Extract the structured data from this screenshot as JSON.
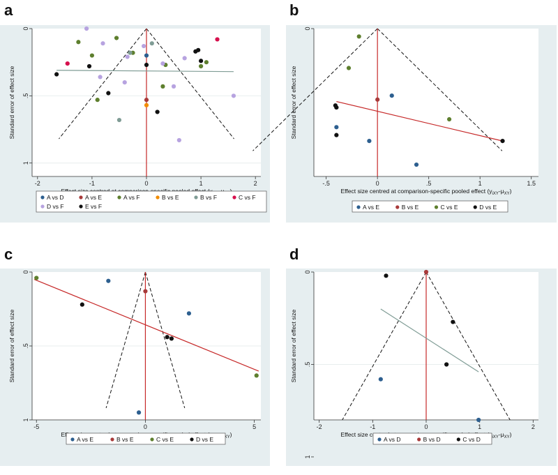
{
  "colors": {
    "panel_bg": "#e6eef0",
    "plot_bg": "#ffffff",
    "vline": "#c62828",
    "A": "#2d5f8f",
    "B": "#a83a3a",
    "C": "#5e7f2e",
    "D": "#b7a3e0",
    "E": "#111111",
    "Borange": "#f28c00",
    "Bgray": "#7f9c95",
    "Cpink": "#d6104d"
  },
  "chart_data": [
    {
      "panel": "a",
      "type": "scatter",
      "xlabel": "Effect size centred at comparison-specific pooled effect (y",
      "xlabel_sub": "iXY",
      "xlabel_mid": "-μ",
      "xlabel_sub2": "XY",
      "xlabel_end": ")",
      "ylabel": "Standard error of effect size",
      "xlim": [
        -2.1,
        2.1
      ],
      "ylim": [
        0,
        1.1
      ],
      "x_ticks": [
        -2,
        -1,
        0,
        1,
        2
      ],
      "x_tick_labels": [
        "-2",
        "-1",
        "0",
        "1",
        "2"
      ],
      "y_ticks": [
        0,
        0.5,
        1
      ],
      "y_tick_labels": [
        "0",
        ".5",
        "1"
      ],
      "funnel_max_se": 0.82,
      "fit_line": {
        "x": [
          -1.65,
          1.6
        ],
        "y": [
          0.31,
          0.32
        ],
        "color": "#7f9c95"
      },
      "legend": [
        {
          "label": "A vs D",
          "color": "#2d5f8f"
        },
        {
          "label": "A vs E",
          "color": "#a83a3a"
        },
        {
          "label": "A vs F",
          "color": "#5e7f2e"
        },
        {
          "label": "B vs E",
          "color": "#f28c00"
        },
        {
          "label": "B vs F",
          "color": "#7f9c95"
        },
        {
          "label": "C vs F",
          "color": "#d6104d"
        },
        {
          "label": "D vs F",
          "color": "#b7a3e0"
        },
        {
          "label": "E vs F",
          "color": "#111111"
        }
      ],
      "series": [
        {
          "name": "A vs D",
          "color": "#2d5f8f",
          "points": [
            [
              0.0,
              0.2
            ]
          ]
        },
        {
          "name": "A vs E",
          "color": "#a83a3a",
          "points": [
            [
              0.0,
              0.53
            ]
          ]
        },
        {
          "name": "A vs F",
          "color": "#5e7f2e",
          "points": [
            [
              -1.25,
              0.1
            ],
            [
              -0.55,
              0.07
            ],
            [
              -1.0,
              0.2
            ],
            [
              -0.25,
              0.18
            ],
            [
              0.35,
              0.27
            ],
            [
              1.0,
              0.28
            ],
            [
              1.1,
              0.25
            ],
            [
              0.3,
              0.43
            ],
            [
              -0.9,
              0.53
            ]
          ]
        },
        {
          "name": "B vs E",
          "color": "#f28c00",
          "points": [
            [
              0.0,
              0.57
            ]
          ]
        },
        {
          "name": "B vs F",
          "color": "#7f9c95",
          "points": [
            [
              -0.3,
              0.18
            ],
            [
              0.1,
              0.11
            ],
            [
              -0.5,
              0.68
            ]
          ]
        },
        {
          "name": "C vs F",
          "color": "#d6104d",
          "points": [
            [
              -1.45,
              0.26
            ],
            [
              1.3,
              0.08
            ]
          ]
        },
        {
          "name": "D vs F",
          "color": "#b7a3e0",
          "points": [
            [
              -1.1,
              0.0
            ],
            [
              -0.8,
              0.11
            ],
            [
              -0.35,
              0.21
            ],
            [
              -0.05,
              0.13
            ],
            [
              0.3,
              0.26
            ],
            [
              0.7,
              0.22
            ],
            [
              -0.85,
              0.36
            ],
            [
              -0.4,
              0.4
            ],
            [
              0.5,
              0.43
            ],
            [
              1.6,
              0.5
            ],
            [
              0.6,
              0.83
            ]
          ]
        },
        {
          "name": "E vs F",
          "color": "#111111",
          "points": [
            [
              -1.65,
              0.34
            ],
            [
              -1.05,
              0.28
            ],
            [
              -0.7,
              0.48
            ],
            [
              0.0,
              0.27
            ],
            [
              0.2,
              0.62
            ],
            [
              0.9,
              0.17
            ],
            [
              1.0,
              0.24
            ],
            [
              0.95,
              0.16
            ]
          ]
        }
      ]
    },
    {
      "panel": "b",
      "type": "scatter",
      "xlabel": "Effect size centred at comparison-specific pooled effect (y",
      "xlabel_sub": "iXY",
      "xlabel_mid": "-μ",
      "xlabel_sub2": "XY",
      "xlabel_end": ")",
      "ylabel": "Standard error of effect size",
      "xlim": [
        -0.62,
        1.57
      ],
      "ylim": [
        0,
        0.75
      ],
      "x_ticks": [
        -0.5,
        0,
        0.5,
        1,
        1.5
      ],
      "x_tick_labels": [
        "-.5",
        "0",
        ".5",
        "1",
        "1.5"
      ],
      "y_ticks": [
        0
      ],
      "y_tick_labels": [
        "0"
      ],
      "funnel_max_se": 0.62,
      "fit_line": {
        "x": [
          -0.4,
          1.22
        ],
        "y": [
          0.37,
          0.57
        ],
        "color": "#c62828"
      },
      "legend": [
        {
          "label": "A vs E",
          "color": "#2d5f8f"
        },
        {
          "label": "B vs E",
          "color": "#a83a3a"
        },
        {
          "label": "C vs E",
          "color": "#5e7f2e"
        },
        {
          "label": "D vs E",
          "color": "#111111"
        }
      ],
      "series": [
        {
          "name": "A vs E",
          "color": "#2d5f8f",
          "points": [
            [
              0.14,
              0.34
            ],
            [
              -0.4,
              0.5
            ],
            [
              -0.08,
              0.57
            ],
            [
              0.38,
              0.69
            ]
          ]
        },
        {
          "name": "B vs E",
          "color": "#a83a3a",
          "points": [
            [
              0.0,
              0.36
            ]
          ]
        },
        {
          "name": "C vs E",
          "color": "#5e7f2e",
          "points": [
            [
              -0.18,
              0.04
            ],
            [
              -0.28,
              0.2
            ],
            [
              0.7,
              0.46
            ]
          ]
        },
        {
          "name": "D vs E",
          "color": "#111111",
          "points": [
            [
              -0.4,
              0.4
            ],
            [
              -0.41,
              0.39
            ],
            [
              -0.4,
              0.54
            ],
            [
              1.22,
              0.57
            ]
          ]
        }
      ]
    },
    {
      "panel": "c",
      "type": "scatter",
      "xlabel": "Effect size centred at comparison-specific pooled effect (y",
      "xlabel_sub": "iXY",
      "xlabel_mid": "-μ",
      "xlabel_sub2": "XY",
      "xlabel_end": ")",
      "ylabel": "Standard error of effect size",
      "xlim": [
        -5.2,
        5.3
      ],
      "ylim": [
        0,
        1.0
      ],
      "x_ticks": [
        -5,
        0,
        5
      ],
      "x_tick_labels": [
        "-5",
        "0",
        "5"
      ],
      "y_ticks": [
        0,
        0.5,
        1
      ],
      "y_tick_labels": [
        "0",
        ".5",
        "1"
      ],
      "funnel_max_se": 0.92,
      "fit_line": {
        "x": [
          -5.1,
          5.2
        ],
        "y": [
          0.05,
          0.67
        ],
        "color": "#c62828"
      },
      "legend": [
        {
          "label": "A vs E",
          "color": "#2d5f8f"
        },
        {
          "label": "B vs E",
          "color": "#a83a3a"
        },
        {
          "label": "C vs E",
          "color": "#5e7f2e"
        },
        {
          "label": "D vs E",
          "color": "#111111"
        }
      ],
      "series": [
        {
          "name": "A vs E",
          "color": "#2d5f8f",
          "points": [
            [
              -1.7,
              0.06
            ],
            [
              2.0,
              0.28
            ],
            [
              -0.3,
              0.95
            ]
          ]
        },
        {
          "name": "B vs E",
          "color": "#a83a3a",
          "points": [
            [
              0.0,
              0.13
            ]
          ]
        },
        {
          "name": "C vs E",
          "color": "#5e7f2e",
          "points": [
            [
              -5.0,
              0.04
            ],
            [
              5.1,
              0.7
            ]
          ]
        },
        {
          "name": "D vs E",
          "color": "#111111",
          "points": [
            [
              -2.9,
              0.22
            ],
            [
              1.0,
              0.44
            ],
            [
              1.2,
              0.45
            ]
          ]
        }
      ]
    },
    {
      "panel": "d",
      "type": "scatter",
      "xlabel": "Effect size centred at comparison-specific pooled effect (y",
      "xlabel_sub": "iXY",
      "xlabel_mid": "-μ",
      "xlabel_sub2": "XY",
      "xlabel_end": ")",
      "ylabel": "Standard error of effect size",
      "xlim": [
        -2.1,
        2.1
      ],
      "ylim": [
        0,
        0.8
      ],
      "x_ticks": [
        -2,
        -1,
        0,
        1,
        2
      ],
      "x_tick_labels": [
        "-2",
        "-1",
        "0",
        "1",
        "2"
      ],
      "y_ticks": [
        0,
        0.5,
        1
      ],
      "y_tick_labels": [
        "0",
        ".5",
        "1"
      ],
      "funnel_max_se": 0.8,
      "fit_line": {
        "x": [
          -0.85,
          0.98
        ],
        "y": [
          0.2,
          0.54
        ],
        "color": "#7f9c95"
      },
      "legend": [
        {
          "label": "A vs D",
          "color": "#2d5f8f"
        },
        {
          "label": "B vs D",
          "color": "#a83a3a"
        },
        {
          "label": "C vs D",
          "color": "#111111"
        }
      ],
      "series": [
        {
          "name": "A vs D",
          "color": "#2d5f8f",
          "points": [
            [
              -0.85,
              0.58
            ],
            [
              0.98,
              0.8
            ]
          ]
        },
        {
          "name": "B vs D",
          "color": "#a83a3a",
          "points": [
            [
              0.0,
              0.0
            ]
          ]
        },
        {
          "name": "C vs D",
          "color": "#111111",
          "points": [
            [
              -0.75,
              0.02
            ],
            [
              0.5,
              0.27
            ],
            [
              0.38,
              0.5
            ]
          ]
        }
      ]
    }
  ]
}
